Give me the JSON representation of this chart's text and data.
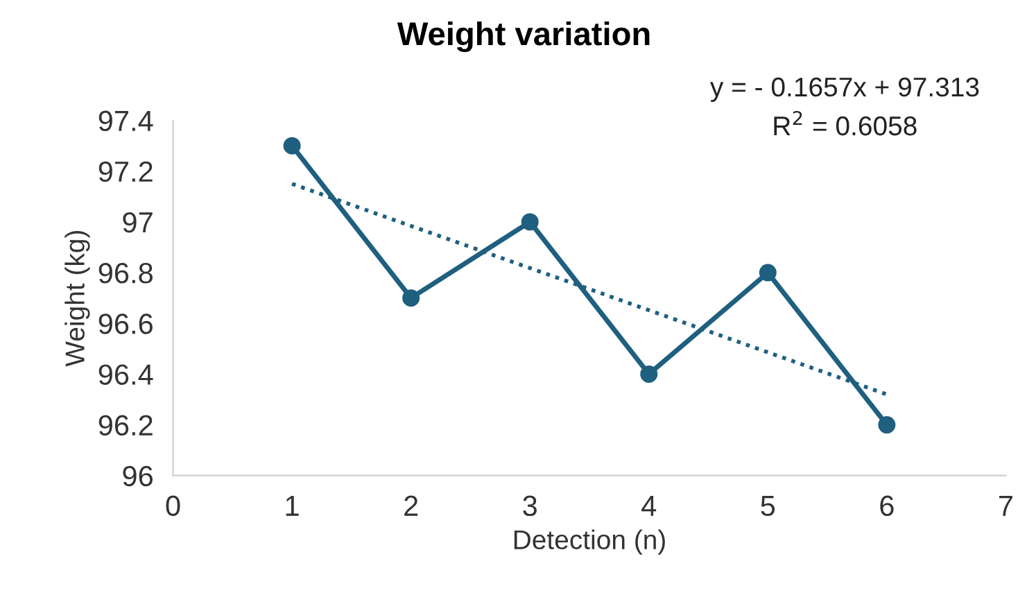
{
  "chart_data": {
    "type": "line",
    "title": "Weight variation",
    "xlabel": "Detection (n)",
    "ylabel": "Weight (kg)",
    "x": [
      1,
      2,
      3,
      4,
      5,
      6
    ],
    "series": [
      {
        "color": "#1f5f7f",
        "values": [
          97.3,
          96.7,
          97.0,
          96.4,
          96.8,
          96.2
        ],
        "marker": "circle",
        "line_style": "solid"
      },
      {
        "type": "line",
        "color": "#1f5f7f",
        "x": [
          1,
          6
        ],
        "values": [
          97.15,
          96.32
        ],
        "marker": "none",
        "line_style": "dotted"
      }
    ],
    "xlim": [
      0,
      7
    ],
    "xticks": [
      0,
      1,
      2,
      3,
      4,
      5,
      6,
      7
    ],
    "ylim": [
      96,
      97.4
    ],
    "yticks": [
      96,
      96.2,
      96.4,
      96.6,
      96.8,
      {
        "value": 97,
        "label": "97"
      },
      97.2,
      97.4
    ],
    "grid": false,
    "legend": false,
    "annotations": [
      "y = - 0.1657x + 97.313",
      "R$^{2}$ = 0.6058"
    ]
  }
}
